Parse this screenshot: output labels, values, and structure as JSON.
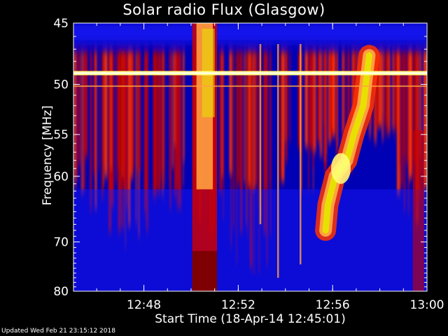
{
  "footer": {
    "updated": "Updated Wed Feb 21 23:15:12 2018"
  },
  "chart_data": {
    "type": "heatmap",
    "title": "Solar radio Flux (Glasgow)",
    "xlabel": "Start Time (18-Apr-14 12:45:01)",
    "ylabel": "Frequency [MHz]",
    "x_range": [
      "12:45",
      "13:00"
    ],
    "x_ticks": [
      "12:48",
      "12:52",
      "12:56",
      "13:00"
    ],
    "y_range": [
      45,
      80
    ],
    "y_ticks": [
      45,
      50,
      55,
      60,
      70,
      80
    ],
    "y_scale": "reciprocal",
    "colormap": [
      "#0000b4",
      "#1b1bff",
      "#cc0000",
      "#ff3300",
      "#ffa040",
      "#e8e000",
      "#ffff80"
    ],
    "interference_line_mhz": 49
  }
}
